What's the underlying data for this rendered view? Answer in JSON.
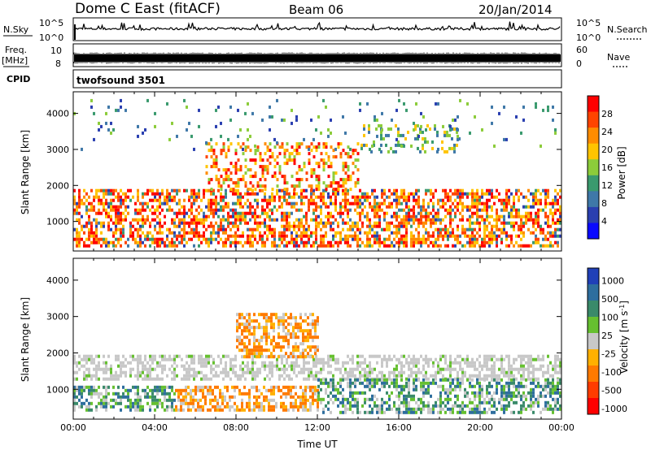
{
  "header": {
    "station": "Dome C East (fitACF)",
    "beam": "Beam 06",
    "date": "20/Jan/2014"
  },
  "top_panels": {
    "nsky_label": "N.Sky",
    "nsky_ticks": [
      "10^5",
      "10^0"
    ],
    "nsearch_label": "N.Search",
    "nsearch_ticks": [
      "10^5",
      "10^0"
    ],
    "freq_label": "Freq.",
    "freq_unit": "[MHz]",
    "freq_ticks": [
      "10",
      "8"
    ],
    "nave_label": "Nave",
    "nave_ticks": [
      "60",
      "0"
    ],
    "cpid_label": "CPID",
    "cpid_value": "twofsound 3501"
  },
  "colors": {
    "power": [
      "#0a0aff",
      "#2a3fb0",
      "#3f78a8",
      "#3a9a6e",
      "#8ccc3a",
      "#ffc400",
      "#ff8c00",
      "#ff4400",
      "#ff0000"
    ],
    "velocity": [
      "#2040b8",
      "#2e6e9e",
      "#3a8a6a",
      "#66c030",
      "#c8c8c8",
      "#ffb000",
      "#ff7a00",
      "#ff3c00",
      "#ff0000"
    ]
  },
  "chart_data": [
    {
      "type": "heatmap",
      "panel": "power",
      "ylabel": "Slant Range [km]",
      "x_ticks": [
        "00:00",
        "04:00",
        "08:00",
        "12:00",
        "16:00",
        "20:00",
        "00:00"
      ],
      "xlim_hours": [
        0,
        24
      ],
      "ylim_km": [
        180,
        4600
      ],
      "y_ticks": [
        1000,
        2000,
        3000,
        4000
      ],
      "colorbar": {
        "label": "Power [dB]",
        "ticks": [
          "28",
          "24",
          "20",
          "16",
          "12",
          "8",
          "4"
        ],
        "range": [
          0,
          30
        ]
      },
      "echo_regions": [
        {
          "t0": 0.0,
          "t1": 24.0,
          "r0": 300,
          "r1": 1900,
          "level": "high"
        },
        {
          "t0": 6.5,
          "t1": 14.0,
          "r0": 1900,
          "r1": 3200,
          "level": "medium"
        },
        {
          "t0": 14.0,
          "t1": 19.0,
          "r0": 2900,
          "r1": 3700,
          "level": "low"
        },
        {
          "t0": 0.0,
          "t1": 24.0,
          "r0": 3000,
          "r1": 4400,
          "level": "scattered"
        }
      ]
    },
    {
      "type": "heatmap",
      "panel": "velocity",
      "ylabel": "Slant Range [km]",
      "xlabel": "Time UT",
      "x_ticks": [
        "00:00",
        "04:00",
        "08:00",
        "12:00",
        "16:00",
        "20:00",
        "00:00"
      ],
      "xlim_hours": [
        0,
        24
      ],
      "ylim_km": [
        180,
        4600
      ],
      "y_ticks": [
        1000,
        2000,
        3000,
        4000
      ],
      "colorbar": {
        "label": "Velocity [m s^-1]",
        "ticks": [
          "1000",
          "500",
          "100",
          "25",
          "-25",
          "-100",
          "-500",
          "-1000"
        ]
      },
      "echo_regions": [
        {
          "t0": 0.0,
          "t1": 24.0,
          "r0": 1300,
          "r1": 1950,
          "level": "near-zero"
        },
        {
          "t0": 0.0,
          "t1": 5.0,
          "r0": 400,
          "r1": 1100,
          "level": "toward"
        },
        {
          "t0": 5.0,
          "t1": 12.0,
          "r0": 400,
          "r1": 1100,
          "level": "away"
        },
        {
          "t0": 12.0,
          "t1": 24.0,
          "r0": 400,
          "r1": 1300,
          "level": "toward"
        },
        {
          "t0": 8.0,
          "t1": 12.0,
          "r0": 1900,
          "r1": 3100,
          "level": "away"
        }
      ]
    }
  ]
}
